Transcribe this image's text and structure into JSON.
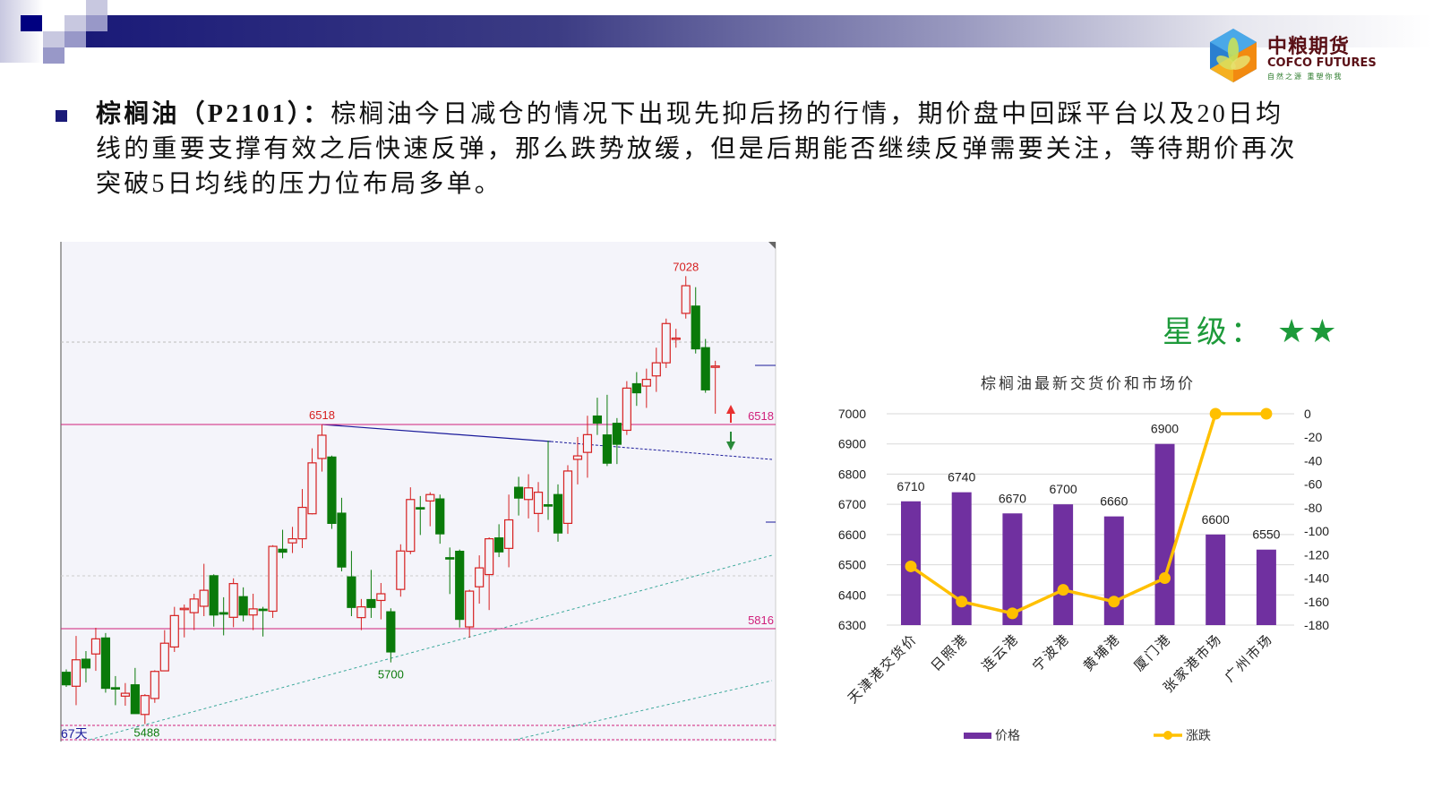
{
  "header": {
    "logo_cn": "中粮期货",
    "logo_en": "COFCO FUTURES",
    "logo_sub": "自然之源 重塑你我"
  },
  "commentary": {
    "title": "棕榈油（P2101）：",
    "lines": [
      "棕榈油今日减仓的情况下出现先抑后扬的行情，期价盘中回踩平台以及20日均",
      "线的重要支撑有效之后快速反弹，那么跌势放缓，但是后期能否继续反弹需要关注，等待期价再次",
      "突破5日均线的压力位布局多单。"
    ]
  },
  "rating": {
    "label": "星级：",
    "stars": "★★",
    "star_count": 2,
    "color": "#1d9a3a"
  },
  "chart_data": [
    {
      "type": "candlestick",
      "period_label": "67天",
      "up_color": "#d62020",
      "down_color": "#0a7a0a",
      "ylim": [
        5428,
        7146
      ],
      "levels": [
        {
          "value": 6518,
          "label": "6518",
          "color": "#d0207a"
        },
        {
          "value": 5816,
          "label": "5816",
          "color": "#d0207a"
        }
      ],
      "annotations": [
        {
          "label": "7028",
          "value": 7028,
          "index": 63,
          "color": "#d62020"
        },
        {
          "label": "6518",
          "value": 6518,
          "index": 26,
          "color": "#d62020"
        },
        {
          "label": "5700",
          "value": 5700,
          "index": 33,
          "color": "#0a7a0a"
        },
        {
          "label": "5488",
          "value": 5488,
          "index": 8,
          "color": "#0a7a0a"
        }
      ],
      "ohlc": [
        [
          5666,
          5676,
          5616,
          5623
        ],
        [
          5618,
          5791,
          5553,
          5709
        ],
        [
          5711,
          5739,
          5631,
          5681
        ],
        [
          5729,
          5819,
          5671,
          5781
        ],
        [
          5784,
          5801,
          5596,
          5611
        ],
        [
          5613,
          5653,
          5553,
          5609
        ],
        [
          5584,
          5629,
          5551,
          5594
        ],
        [
          5623,
          5681,
          5524,
          5524
        ],
        [
          5521,
          5591,
          5488,
          5586
        ],
        [
          5576,
          5673,
          5561,
          5669
        ],
        [
          5671,
          5811,
          5671,
          5766
        ],
        [
          5753,
          5891,
          5736,
          5861
        ],
        [
          5884,
          5899,
          5786,
          5886
        ],
        [
          5871,
          5936,
          5811,
          5918
        ],
        [
          5893,
          6039,
          5859,
          5948
        ],
        [
          5998,
          6003,
          5823,
          5863
        ],
        [
          5871,
          5924,
          5793,
          5866
        ],
        [
          5855,
          5989,
          5821,
          5971
        ],
        [
          5926,
          5958,
          5841,
          5863
        ],
        [
          5863,
          5936,
          5811,
          5884
        ],
        [
          5883,
          5891,
          5789,
          5879
        ],
        [
          5876,
          6103,
          5853,
          6099
        ],
        [
          6089,
          6156,
          6058,
          6079
        ],
        [
          6111,
          6166,
          6076,
          6125
        ],
        [
          6125,
          6296,
          6093,
          6233
        ],
        [
          6211,
          6436,
          6209,
          6386
        ],
        [
          6401,
          6518,
          6356,
          6481
        ],
        [
          6406,
          6411,
          6159,
          6178
        ],
        [
          6213,
          6266,
          6013,
          6028
        ],
        [
          5994,
          6083,
          5859,
          5889
        ],
        [
          5854,
          5918,
          5811,
          5891
        ],
        [
          5916,
          6018,
          5853,
          5889
        ],
        [
          5913,
          5973,
          5848,
          5936
        ],
        [
          5874,
          5886,
          5700,
          5736
        ],
        [
          5951,
          6106,
          5926,
          6083
        ],
        [
          6082,
          6302,
          6072,
          6260
        ],
        [
          6232,
          6272,
          6138,
          6228
        ],
        [
          6255,
          6285,
          6168,
          6277
        ],
        [
          6262,
          6277,
          6108,
          6142
        ],
        [
          6060,
          6095,
          5935,
          6056
        ],
        [
          6082,
          6088,
          5820,
          5848
        ],
        [
          5822,
          5950,
          5785,
          5945
        ],
        [
          5960,
          6068,
          5902,
          6025
        ],
        [
          6002,
          6130,
          5880,
          6125
        ],
        [
          6128,
          6175,
          6062,
          6080
        ],
        [
          6092,
          6277,
          6027,
          6190
        ],
        [
          6302,
          6338,
          6205,
          6265
        ],
        [
          6260,
          6347,
          6195,
          6300
        ],
        [
          6212,
          6320,
          6148,
          6285
        ],
        [
          6242,
          6462,
          6190,
          6238
        ],
        [
          6277,
          6312,
          6115,
          6145
        ],
        [
          6178,
          6378,
          6142,
          6358
        ],
        [
          6398,
          6475,
          6312,
          6410
        ],
        [
          6422,
          6548,
          6335,
          6483
        ],
        [
          6547,
          6610,
          6482,
          6523
        ],
        [
          6482,
          6620,
          6375,
          6385
        ],
        [
          6522,
          6540,
          6382,
          6450
        ],
        [
          6498,
          6667,
          6482,
          6643
        ],
        [
          6658,
          6698,
          6582,
          6627
        ],
        [
          6650,
          6710,
          6575,
          6673
        ],
        [
          6685,
          6782,
          6630,
          6730
        ],
        [
          6730,
          6882,
          6712,
          6865
        ],
        [
          6813,
          6847,
          6782,
          6815
        ],
        [
          6900,
          7028,
          6882,
          6995
        ],
        [
          6925,
          6990,
          6762,
          6778
        ],
        [
          6782,
          6812,
          6627,
          6637
        ],
        [
          6717,
          6737,
          6555,
          6719
        ]
      ]
    },
    {
      "type": "bar+line",
      "title": "棕榈油最新交货价和市场价",
      "categories": [
        "天津港交货价",
        "日照港",
        "连云港",
        "宁波港",
        "黄埔港",
        "厦门港",
        "张家港市场",
        "广州市场"
      ],
      "series": [
        {
          "name": "价格",
          "type": "bar",
          "axis": "left",
          "color": "#7030a0",
          "values": [
            6710,
            6740,
            6670,
            6700,
            6660,
            6900,
            6600,
            6550
          ]
        },
        {
          "name": "涨跌",
          "type": "line",
          "axis": "right",
          "color": "#ffc000",
          "values": [
            -130,
            -160,
            -170,
            -150,
            -160,
            -140,
            0,
            0
          ]
        }
      ],
      "y_left": {
        "min": 6300,
        "max": 7000,
        "ticks": [
          "6300",
          "6400",
          "6500",
          "6600",
          "6700",
          "6800",
          "6900",
          "7000"
        ]
      },
      "y_right": {
        "min": -180,
        "max": 0,
        "ticks": [
          "-180",
          "-160",
          "-140",
          "-120",
          "-100",
          "-80",
          "-60",
          "-40",
          "-20",
          "0"
        ]
      },
      "grid": true,
      "legend": "bottom"
    }
  ]
}
